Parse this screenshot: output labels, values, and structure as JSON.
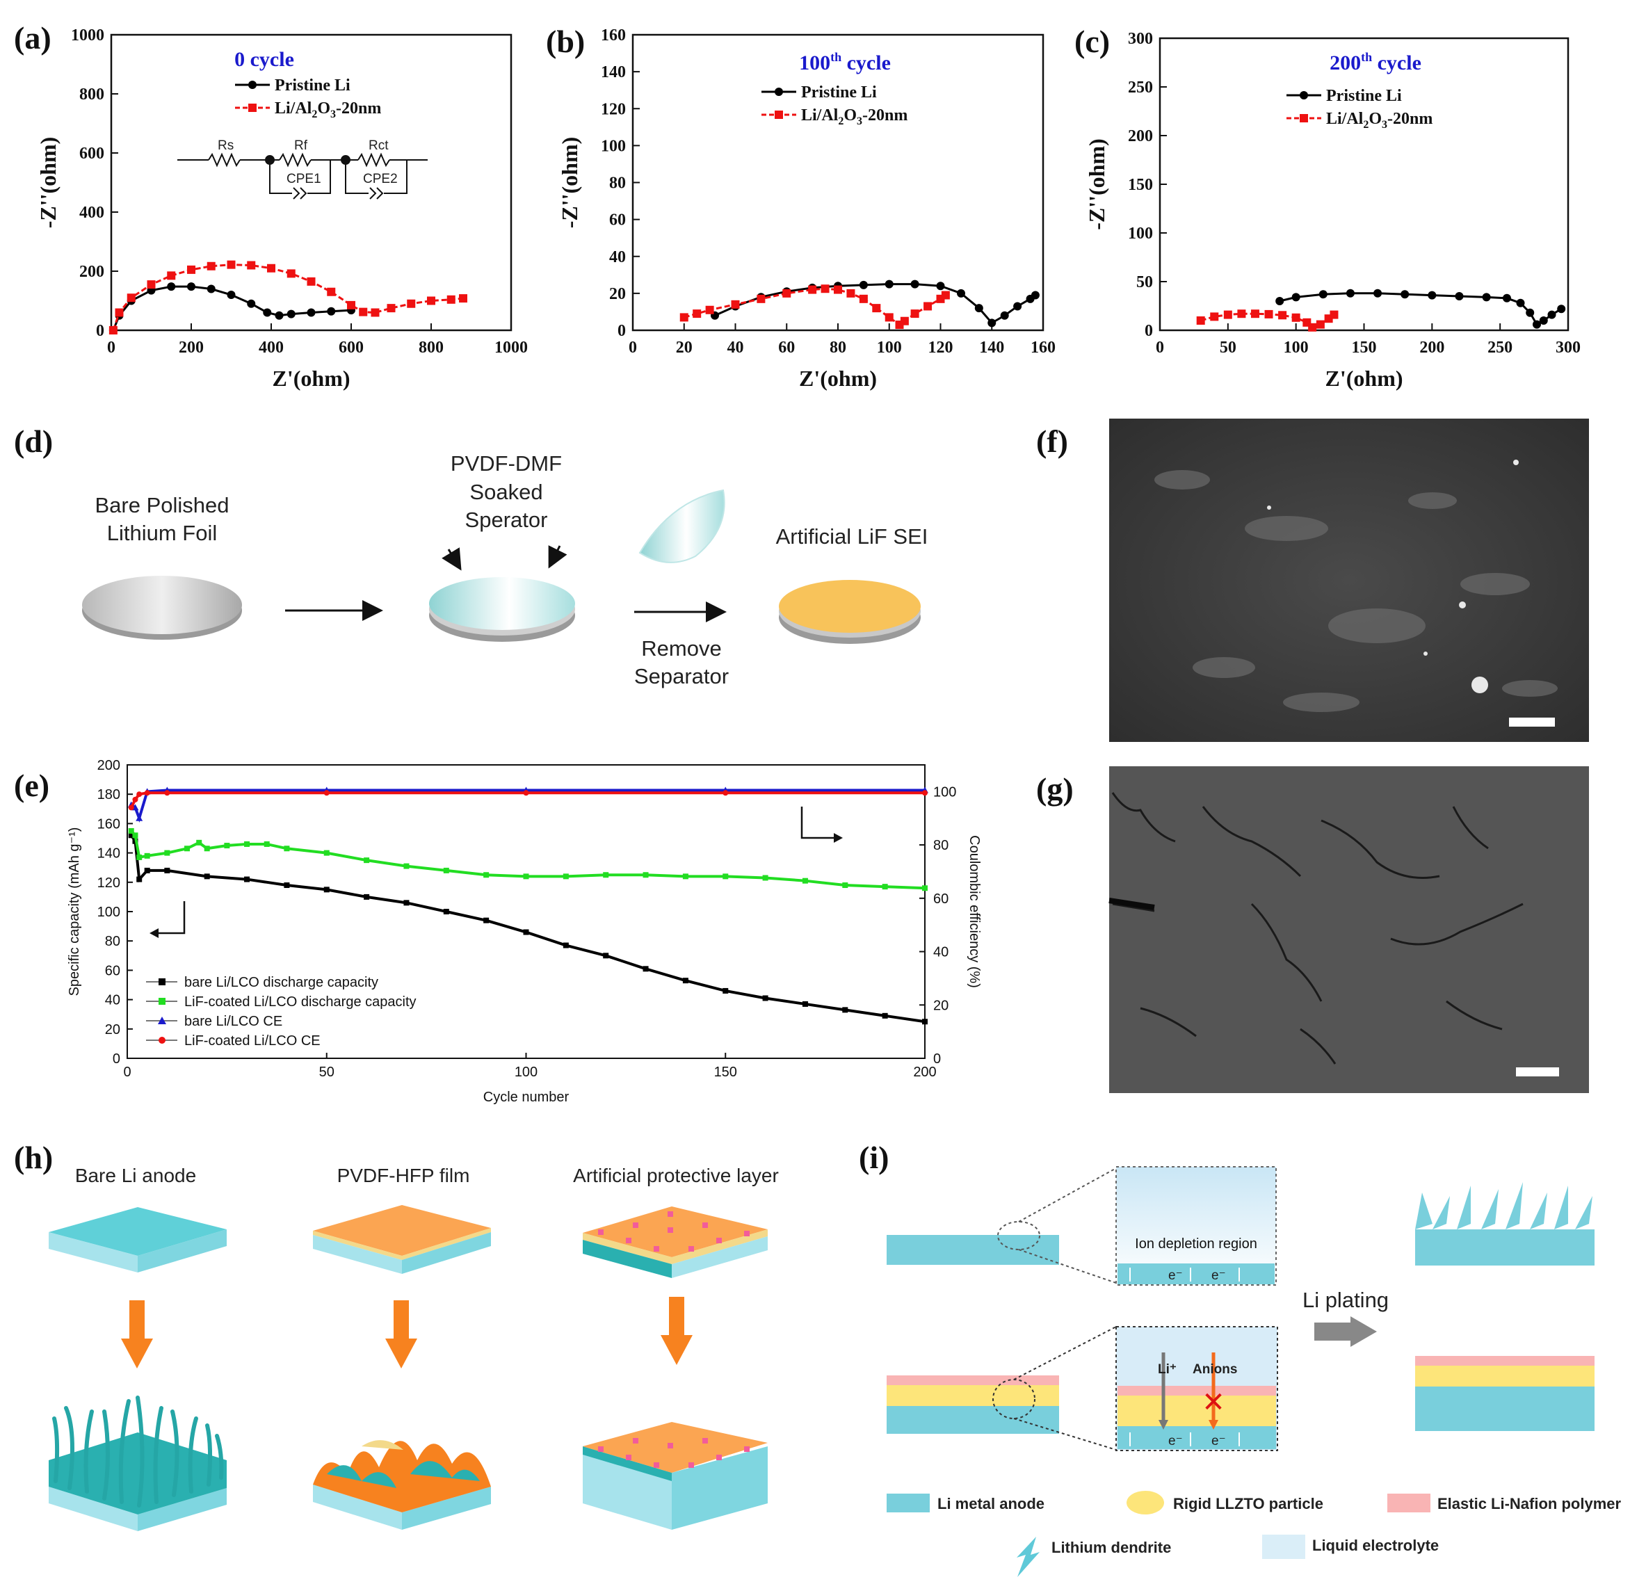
{
  "panel_labels": {
    "a": "(a)",
    "b": "(b)",
    "c": "(c)",
    "d": "(d)",
    "e": "(e)",
    "f": "(f)",
    "g": "(g)",
    "h": "(h)",
    "i": "(i)"
  },
  "eis": {
    "xlabel": "Z'(ohm)",
    "ylabel": "-Z''(ohm)",
    "legend": [
      "Pristine Li",
      "Li/Al2O3-20nm"
    ],
    "series_colors": {
      "pristine": "#000000",
      "coated": "#ee1111"
    },
    "circuit": {
      "r1": "Rs",
      "r2": "Rf",
      "r3": "Rct",
      "c1": "CPE1",
      "c2": "CPE2"
    }
  },
  "chart_data": [
    {
      "type": "scatter",
      "panel": "a",
      "title": "0 cycle",
      "xlabel": "Z'(ohm)",
      "ylabel": "-Z''(ohm)",
      "xlim": [
        0,
        1000
      ],
      "ylim": [
        0,
        1000
      ],
      "xticks": [
        0,
        200,
        400,
        600,
        800,
        1000
      ],
      "yticks": [
        0,
        200,
        400,
        600,
        800,
        1000
      ],
      "series": [
        {
          "name": "Pristine Li",
          "x": [
            5,
            20,
            50,
            100,
            150,
            200,
            250,
            300,
            350,
            390,
            420,
            450,
            500,
            550,
            600
          ],
          "y": [
            0,
            50,
            100,
            135,
            148,
            148,
            140,
            120,
            90,
            60,
            50,
            55,
            60,
            64,
            68
          ]
        },
        {
          "name": "Li/Al2O3-20nm",
          "x": [
            5,
            20,
            50,
            100,
            150,
            200,
            250,
            300,
            350,
            400,
            450,
            500,
            550,
            600,
            630,
            660,
            700,
            750,
            800,
            850,
            880
          ],
          "y": [
            0,
            60,
            110,
            155,
            185,
            205,
            217,
            222,
            220,
            210,
            192,
            165,
            130,
            85,
            62,
            60,
            75,
            90,
            100,
            104,
            108
          ]
        }
      ]
    },
    {
      "type": "scatter",
      "panel": "b",
      "title": "100th cycle",
      "xlabel": "Z'(ohm)",
      "ylabel": "-Z''(ohm)",
      "xlim": [
        0,
        160
      ],
      "ylim": [
        0,
        160
      ],
      "xticks": [
        0,
        20,
        40,
        60,
        80,
        100,
        120,
        140,
        160
      ],
      "yticks": [
        0,
        20,
        40,
        60,
        80,
        100,
        120,
        140,
        160
      ],
      "series": [
        {
          "name": "Pristine Li",
          "x": [
            32,
            40,
            50,
            60,
            70,
            80,
            90,
            100,
            110,
            120,
            128,
            135,
            140,
            145,
            150,
            155,
            157
          ],
          "y": [
            8,
            13,
            18,
            21,
            23,
            24,
            24.5,
            25,
            25,
            24,
            20,
            12,
            4,
            8,
            13,
            17,
            19
          ]
        },
        {
          "name": "Li/Al2O3-20nm",
          "x": [
            20,
            25,
            30,
            40,
            50,
            60,
            70,
            75,
            80,
            85,
            90,
            95,
            100,
            104,
            106,
            110,
            115,
            120,
            122
          ],
          "y": [
            7,
            9,
            11,
            14,
            17,
            20,
            22,
            22.5,
            22,
            20,
            17,
            12,
            7,
            3,
            5,
            9,
            13,
            17,
            19
          ]
        }
      ]
    },
    {
      "type": "scatter",
      "panel": "c",
      "title": "200th cycle",
      "xlabel": "Z'(ohm)",
      "ylabel": "-Z''(ohm)",
      "xlim": [
        0,
        300
      ],
      "ylim": [
        0,
        300
      ],
      "xticks": [
        0,
        50,
        100,
        150,
        200,
        250,
        300
      ],
      "yticks": [
        0,
        50,
        100,
        150,
        200,
        250,
        300
      ],
      "series": [
        {
          "name": "Pristine Li",
          "x": [
            88,
            100,
            120,
            140,
            160,
            180,
            200,
            220,
            240,
            255,
            265,
            272,
            277,
            282,
            288,
            295
          ],
          "y": [
            30,
            34,
            37,
            38,
            38,
            37,
            36,
            35,
            34,
            33,
            28,
            18,
            6,
            10,
            16,
            22
          ]
        },
        {
          "name": "Li/Al2O3-20nm",
          "x": [
            30,
            40,
            50,
            60,
            70,
            80,
            90,
            100,
            108,
            112,
            118,
            124,
            128
          ],
          "y": [
            10,
            14,
            16,
            17,
            17,
            16.5,
            15.5,
            13,
            8,
            3,
            6,
            12,
            16
          ]
        }
      ]
    },
    {
      "type": "line",
      "panel": "e",
      "xlabel": "Cycle number",
      "ylabel": "Specific capacity (mAh g⁻¹)",
      "y2label": "Coulombic efficiency (%)",
      "xlim": [
        0,
        200
      ],
      "ylim": [
        0,
        200
      ],
      "y2lim": [
        0,
        110
      ],
      "xticks": [
        0,
        50,
        100,
        150,
        200
      ],
      "yticks": [
        0,
        20,
        40,
        60,
        80,
        100,
        120,
        140,
        160,
        180,
        200
      ],
      "y2ticks": [
        0,
        20,
        40,
        60,
        80,
        100
      ],
      "series": [
        {
          "name": "bare Li/LCO discharge capacity",
          "color": "#000000",
          "axis": "left",
          "x": [
            1,
            2,
            3,
            5,
            10,
            20,
            30,
            40,
            50,
            60,
            70,
            80,
            90,
            100,
            110,
            120,
            130,
            140,
            150,
            160,
            170,
            180,
            190,
            200
          ],
          "y": [
            152,
            148,
            122,
            128,
            128,
            124,
            122,
            118,
            115,
            110,
            106,
            100,
            94,
            86,
            77,
            70,
            61,
            53,
            46,
            41,
            37,
            33,
            29,
            25
          ]
        },
        {
          "name": "LiF-coated  Li/LCO discharge capacity",
          "color": "#22dd22",
          "axis": "left",
          "x": [
            1,
            2,
            3,
            5,
            10,
            15,
            18,
            20,
            25,
            30,
            35,
            40,
            50,
            60,
            70,
            80,
            90,
            100,
            110,
            120,
            130,
            140,
            150,
            160,
            170,
            180,
            190,
            200
          ],
          "y": [
            155,
            152,
            137,
            138,
            140,
            143,
            147,
            143,
            145,
            146,
            146,
            143,
            140,
            135,
            131,
            128,
            125,
            124,
            124,
            125,
            125,
            124,
            124,
            123,
            121,
            118,
            117,
            116
          ]
        },
        {
          "name": "bare Li/LCO CE",
          "color": "#1a1acc",
          "axis": "right",
          "x": [
            1,
            2,
            3,
            5,
            10,
            50,
            100,
            150,
            200
          ],
          "y": [
            95,
            94,
            90,
            100,
            100.5,
            100.5,
            100.5,
            100.5,
            100.5
          ]
        },
        {
          "name": "LiF-coated  Li/LCO CE",
          "color": "#ee1111",
          "axis": "right",
          "x": [
            1,
            2,
            3,
            5,
            10,
            50,
            100,
            150,
            200
          ],
          "y": [
            94,
            97,
            99,
            99.5,
            99.5,
            99.5,
            99.5,
            99.5,
            99.5
          ]
        }
      ]
    }
  ],
  "panel_d": {
    "label1": [
      "Bare Polished",
      "Lithium Foil"
    ],
    "label2": [
      "PVDF-DMF",
      "Soaked",
      "Sperator"
    ],
    "label3": "Artificial LiF SEI",
    "label4": [
      "Remove",
      "Separator"
    ]
  },
  "panel_h": {
    "titles": [
      "Bare Li anode",
      "PVDF-HFP film",
      "Artificial protective layer"
    ]
  },
  "panel_i": {
    "ion_depletion": "Ion depletion region",
    "electron": "e⁻",
    "li_ion": "Li⁺",
    "anions": "Anions",
    "li_plating": "Li plating",
    "legend": [
      "Li metal anode",
      "Rigid LLZTO particle",
      "Elastic Li-Nafion polymer",
      "Lithium dendrite",
      "Liquid electrolyte"
    ]
  }
}
